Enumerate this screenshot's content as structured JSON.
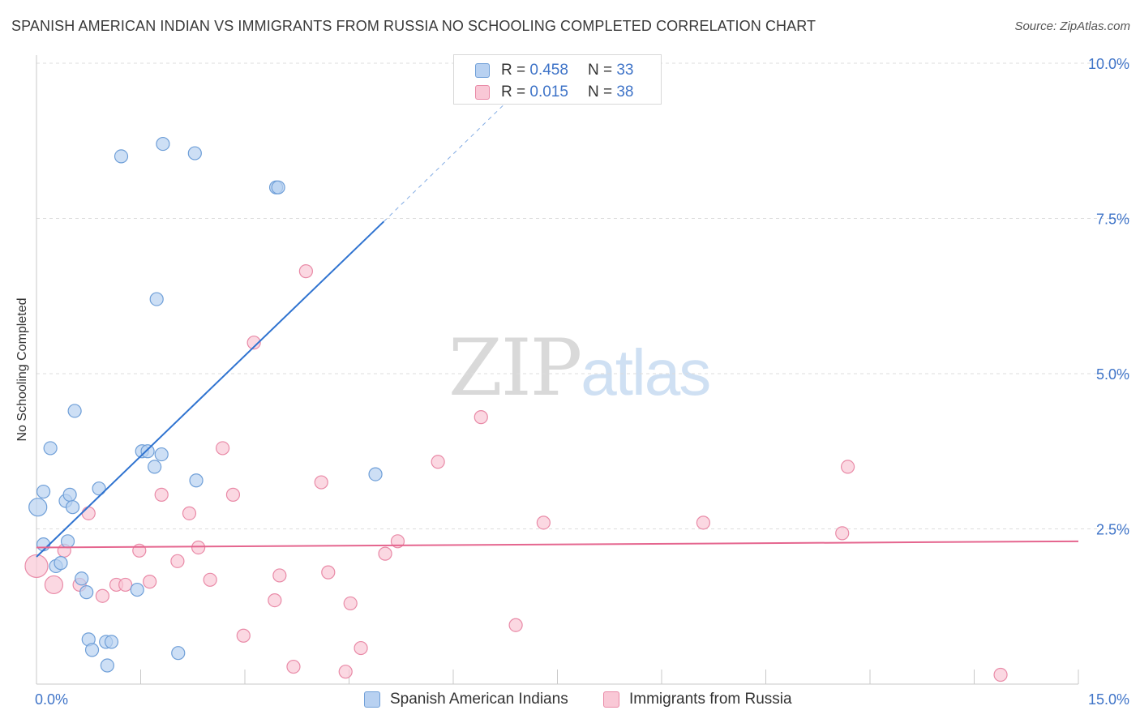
{
  "title": "SPANISH AMERICAN INDIAN VS IMMIGRANTS FROM RUSSIA NO SCHOOLING COMPLETED CORRELATION CHART",
  "source": "Source: ZipAtlas.com",
  "watermark": {
    "zip": "ZIP",
    "atlas": "atlas"
  },
  "colors": {
    "blue_fill": "#b8d1f1",
    "blue_stroke": "#6f9fd8",
    "blue_line": "#2f73d0",
    "pink_fill": "#f9c8d6",
    "pink_stroke": "#e98aa7",
    "pink_line": "#e5668f",
    "grid": "#dddddd",
    "tick_label": "#3f74c8"
  },
  "legend": {
    "series1": {
      "r_label": "R =",
      "r_value": "0.458",
      "n_label": "N =",
      "n_value": "33"
    },
    "series2": {
      "r_label": "R =",
      "r_value": "0.015",
      "n_label": "N =",
      "n_value": "38"
    }
  },
  "chart_data": {
    "type": "scatter",
    "title": "SPANISH AMERICAN INDIAN VS IMMIGRANTS FROM RUSSIA NO SCHOOLING COMPLETED CORRELATION CHART",
    "xlabel": "",
    "ylabel": "No Schooling Completed",
    "xlim": [
      0,
      15
    ],
    "ylim": [
      0,
      10
    ],
    "x_tick_labels": [
      "0.0%",
      "15.0%"
    ],
    "y_ticks": [
      2.5,
      5.0,
      7.5,
      10.0
    ],
    "y_tick_labels": [
      "2.5%",
      "5.0%",
      "7.5%",
      "10.0%"
    ],
    "series": [
      {
        "name": "Spanish American Indians",
        "color": "blue",
        "points": [
          [
            0.02,
            2.85
          ],
          [
            0.1,
            3.1
          ],
          [
            0.2,
            3.8
          ],
          [
            0.28,
            1.9
          ],
          [
            0.35,
            1.95
          ],
          [
            0.1,
            2.25
          ],
          [
            0.42,
            2.95
          ],
          [
            0.45,
            2.3
          ],
          [
            0.55,
            4.4
          ],
          [
            0.48,
            3.05
          ],
          [
            0.52,
            2.85
          ],
          [
            0.65,
            1.7
          ],
          [
            0.72,
            1.48
          ],
          [
            0.75,
            0.72
          ],
          [
            0.8,
            0.55
          ],
          [
            0.9,
            3.15
          ],
          [
            1.0,
            0.68
          ],
          [
            1.08,
            0.68
          ],
          [
            1.02,
            0.3
          ],
          [
            1.45,
            1.52
          ],
          [
            1.52,
            3.75
          ],
          [
            1.6,
            3.75
          ],
          [
            1.7,
            3.5
          ],
          [
            1.8,
            3.7
          ],
          [
            1.73,
            6.2
          ],
          [
            1.22,
            8.5
          ],
          [
            1.82,
            8.7
          ],
          [
            2.28,
            8.55
          ],
          [
            2.04,
            0.5
          ],
          [
            2.3,
            3.28
          ],
          [
            3.45,
            8.0
          ],
          [
            3.48,
            8.0
          ],
          [
            4.88,
            3.38
          ]
        ],
        "trend": {
          "x": [
            0.0,
            5.0
          ],
          "y": [
            2.05,
            7.45
          ],
          "dashed_to": [
            7.25,
            9.9
          ]
        }
      },
      {
        "name": "Immigrants from Russia",
        "color": "pink",
        "points": [
          [
            0.0,
            1.9
          ],
          [
            0.25,
            1.6
          ],
          [
            0.4,
            2.15
          ],
          [
            0.62,
            1.6
          ],
          [
            0.75,
            2.75
          ],
          [
            0.95,
            1.42
          ],
          [
            1.15,
            1.6
          ],
          [
            1.28,
            1.6
          ],
          [
            1.48,
            2.15
          ],
          [
            1.63,
            1.65
          ],
          [
            1.8,
            3.05
          ],
          [
            2.03,
            1.98
          ],
          [
            2.2,
            2.75
          ],
          [
            2.33,
            2.2
          ],
          [
            2.5,
            1.68
          ],
          [
            2.68,
            3.8
          ],
          [
            2.83,
            3.05
          ],
          [
            2.98,
            0.78
          ],
          [
            3.13,
            5.5
          ],
          [
            3.43,
            1.35
          ],
          [
            3.5,
            1.75
          ],
          [
            3.88,
            6.65
          ],
          [
            3.7,
            0.28
          ],
          [
            4.1,
            3.25
          ],
          [
            4.2,
            1.8
          ],
          [
            4.45,
            0.2
          ],
          [
            4.52,
            1.3
          ],
          [
            4.67,
            0.58
          ],
          [
            5.02,
            2.1
          ],
          [
            5.2,
            2.3
          ],
          [
            5.78,
            3.58
          ],
          [
            6.4,
            4.3
          ],
          [
            6.9,
            0.95
          ],
          [
            7.3,
            2.6
          ],
          [
            9.6,
            2.6
          ],
          [
            11.68,
            3.5
          ],
          [
            11.6,
            2.43
          ],
          [
            13.88,
            0.15
          ]
        ],
        "trend": {
          "x": [
            0.0,
            15.0
          ],
          "y": [
            2.2,
            2.3
          ]
        }
      }
    ]
  }
}
